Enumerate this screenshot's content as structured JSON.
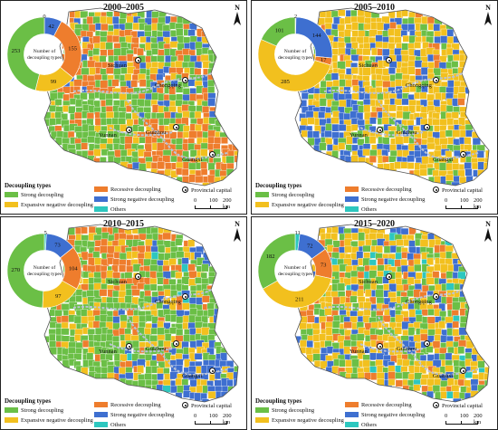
{
  "colors": {
    "strong": "#6bbf46",
    "expansive": "#f2c01e",
    "recessive": "#ee7d2d",
    "strong_negative": "#3e6fd0",
    "others": "#2dc7bf",
    "river": "#b9c3d6",
    "boundary": "#9a9a9a"
  },
  "icons": {
    "north": "north-arrow-icon",
    "capital": "provincial-capital-icon"
  },
  "legend": {
    "title": "Decoupling types",
    "items": [
      {
        "key": "strong",
        "label": "Strong decoupling"
      },
      {
        "key": "expansive",
        "label": "Expansive negative decoupling"
      },
      {
        "key": "recessive",
        "label": "Recessive decoupling"
      },
      {
        "key": "strong_negative",
        "label": "Strong negative decoupling"
      },
      {
        "key": "others",
        "label": "Others"
      }
    ],
    "capital_label": "Provincial capital",
    "north_label": "N",
    "scale_ticks": [
      "0",
      "100",
      "200 km"
    ]
  },
  "donut_center_label": [
    "Number of",
    "decoupling types"
  ],
  "cities": [
    "Sichuan",
    "Chongqing",
    "Guizhou",
    "Yunnan",
    "Guangxi"
  ],
  "panels": [
    {
      "title": "2000–2005",
      "counts": {
        "strong": 253,
        "expansive": 99,
        "recessive": 155,
        "strong_negative": 42,
        "others": 0
      },
      "labels": [
        [
          "253",
          "strong"
        ],
        [
          "99",
          "expansive"
        ],
        [
          "155",
          "recessive"
        ],
        [
          "42",
          "strong_negative"
        ],
        [
          "0",
          "others"
        ]
      ]
    },
    {
      "title": "2005–2010",
      "counts": {
        "strong": 101,
        "expansive": 285,
        "recessive": 17,
        "strong_negative": 144,
        "others": 2
      },
      "labels": [
        [
          "101",
          "strong"
        ],
        [
          "285",
          "expansive"
        ],
        [
          "17",
          "recessive"
        ],
        [
          "144",
          "strong_negative"
        ],
        [
          "2",
          "others"
        ]
      ]
    },
    {
      "title": "2010–2015",
      "counts": {
        "strong": 270,
        "expansive": 97,
        "recessive": 104,
        "strong_negative": 73,
        "others": 5
      },
      "labels": [
        [
          "270",
          "strong"
        ],
        [
          "97",
          "expansive"
        ],
        [
          "104",
          "recessive"
        ],
        [
          "73",
          "strong_negative"
        ],
        [
          "5",
          "others"
        ]
      ]
    },
    {
      "title": "2015–2020",
      "counts": {
        "strong": 182,
        "expansive": 211,
        "recessive": 73,
        "strong_negative": 72,
        "others": 11
      },
      "labels": [
        [
          "182",
          "strong"
        ],
        [
          "211",
          "expansive"
        ],
        [
          "73",
          "recessive"
        ],
        [
          "72",
          "strong_negative"
        ],
        [
          "11",
          "others"
        ]
      ]
    }
  ]
}
